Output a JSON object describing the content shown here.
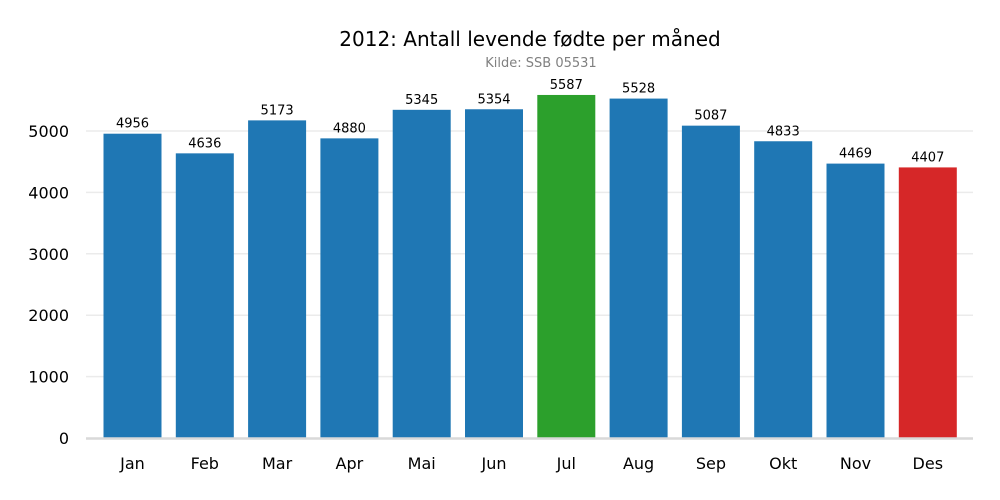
{
  "chart_data": {
    "type": "bar",
    "title": "2012: Antall levende fødte per måned",
    "subtitle": "Kilde: SSB 05531",
    "xlabel": "",
    "ylabel": "",
    "categories": [
      "Jan",
      "Feb",
      "Mar",
      "Apr",
      "Mai",
      "Jun",
      "Jul",
      "Aug",
      "Sep",
      "Okt",
      "Nov",
      "Des"
    ],
    "values": [
      4956,
      4636,
      5173,
      4880,
      5345,
      5354,
      5587,
      5528,
      5087,
      4833,
      4469,
      4407
    ],
    "ylim": [
      0,
      5700
    ],
    "yticks": [
      0,
      1000,
      2000,
      3000,
      4000,
      5000
    ],
    "grid": "horizontal",
    "colors": {
      "default": "#1f77b4",
      "max": "#2ca02c",
      "min": "#d62728",
      "grid": "#ebebeb",
      "axis": "#d9d9d9"
    }
  }
}
